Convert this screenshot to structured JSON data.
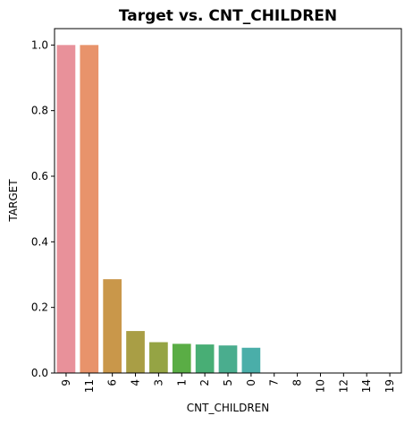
{
  "chart_data": {
    "type": "bar",
    "title": "Target vs. CNT_CHILDREN",
    "xlabel": "CNT_CHILDREN",
    "ylabel": "TARGET",
    "categories": [
      "9",
      "11",
      "6",
      "4",
      "3",
      "1",
      "2",
      "5",
      "0",
      "7",
      "8",
      "10",
      "12",
      "14",
      "19"
    ],
    "values": [
      1.0,
      1.0,
      0.286,
      0.128,
      0.094,
      0.089,
      0.087,
      0.084,
      0.077,
      0.0,
      0.0,
      0.0,
      0.0,
      0.0,
      0.0
    ],
    "colors": [
      "#e8919a",
      "#e8936b",
      "#c9974a",
      "#a99e45",
      "#95a444",
      "#5aad45",
      "#48ae75",
      "#4aad8e",
      "#4aaea9",
      "#4cabbd",
      "#55a6d2",
      "#8d9be4",
      "#b791e5",
      "#d686dc",
      "#e786c5"
    ],
    "ylim": [
      0,
      1.05
    ],
    "yticks": [
      0.0,
      0.2,
      0.4,
      0.6,
      0.8,
      1.0
    ],
    "ytick_labels": [
      "0.0",
      "0.2",
      "0.4",
      "0.6",
      "0.8",
      "1.0"
    ],
    "grid": false,
    "legend": "none"
  }
}
